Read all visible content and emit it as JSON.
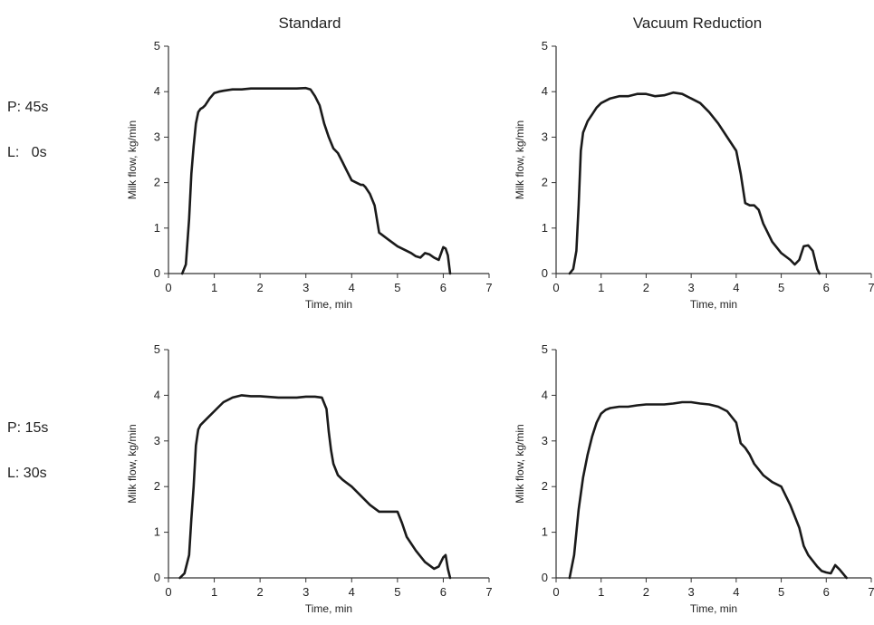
{
  "column_titles": [
    "Standard",
    "Vacuum Reduction"
  ],
  "row_labels": [
    {
      "p": "P: 45s",
      "l": "L:   0s"
    },
    {
      "p": "P: 15s",
      "l": "L: 30s"
    }
  ],
  "colors": {
    "line": "#1a1a1a",
    "axis": "#333333",
    "text": "#222222"
  },
  "chart_data": [
    {
      "type": "line",
      "xlabel": "Time, min",
      "ylabel": "Milk flow, kg/min",
      "xlim": [
        0,
        7
      ],
      "ylim": [
        0,
        5
      ],
      "xticks": [
        0,
        1,
        2,
        3,
        4,
        5,
        6,
        7
      ],
      "yticks": [
        0,
        1,
        2,
        3,
        4,
        5
      ],
      "grid": false,
      "series": [
        {
          "x": [
            0.3,
            0.38,
            0.45,
            0.5,
            0.55,
            0.6,
            0.65,
            0.7,
            0.75,
            0.8,
            0.9,
            1.0,
            1.1,
            1.2,
            1.4,
            1.6,
            1.8,
            2.0,
            2.2,
            2.5,
            2.8,
            3.0,
            3.1,
            3.2,
            3.3,
            3.4,
            3.5,
            3.6,
            3.7,
            3.8,
            3.9,
            4.0,
            4.1,
            4.2,
            4.25,
            4.3,
            4.4,
            4.5,
            4.6,
            4.8,
            5.0,
            5.2,
            5.3,
            5.4,
            5.5,
            5.6,
            5.7,
            5.8,
            5.9,
            6.0,
            6.05,
            6.1,
            6.15
          ],
          "y": [
            0.0,
            0.2,
            1.2,
            2.2,
            2.8,
            3.3,
            3.55,
            3.62,
            3.65,
            3.7,
            3.85,
            3.97,
            4.0,
            4.02,
            4.05,
            4.05,
            4.07,
            4.07,
            4.07,
            4.07,
            4.07,
            4.08,
            4.05,
            3.9,
            3.7,
            3.3,
            3.0,
            2.75,
            2.65,
            2.45,
            2.25,
            2.05,
            2.0,
            1.95,
            1.95,
            1.9,
            1.75,
            1.5,
            0.9,
            0.75,
            0.6,
            0.5,
            0.45,
            0.38,
            0.35,
            0.45,
            0.42,
            0.35,
            0.3,
            0.58,
            0.55,
            0.4,
            0.0
          ]
        }
      ]
    },
    {
      "type": "line",
      "xlabel": "Time, min",
      "ylabel": "Milk flow, kg/min",
      "xlim": [
        0,
        7
      ],
      "ylim": [
        0,
        5
      ],
      "xticks": [
        0,
        1,
        2,
        3,
        4,
        5,
        6,
        7
      ],
      "yticks": [
        0,
        1,
        2,
        3,
        4,
        5
      ],
      "grid": false,
      "series": [
        {
          "x": [
            0.3,
            0.38,
            0.45,
            0.5,
            0.55,
            0.6,
            0.7,
            0.8,
            0.9,
            1.0,
            1.2,
            1.4,
            1.6,
            1.8,
            2.0,
            2.2,
            2.4,
            2.6,
            2.8,
            3.0,
            3.2,
            3.4,
            3.6,
            3.8,
            4.0,
            4.1,
            4.2,
            4.3,
            4.4,
            4.5,
            4.6,
            4.8,
            5.0,
            5.2,
            5.3,
            5.4,
            5.5,
            5.6,
            5.7,
            5.8,
            5.85
          ],
          "y": [
            0.0,
            0.1,
            0.5,
            1.5,
            2.7,
            3.1,
            3.35,
            3.5,
            3.65,
            3.75,
            3.85,
            3.9,
            3.9,
            3.95,
            3.95,
            3.9,
            3.92,
            3.98,
            3.95,
            3.85,
            3.75,
            3.55,
            3.3,
            3.0,
            2.7,
            2.2,
            1.55,
            1.5,
            1.5,
            1.4,
            1.1,
            0.7,
            0.45,
            0.3,
            0.2,
            0.3,
            0.6,
            0.62,
            0.5,
            0.1,
            0.0
          ]
        }
      ]
    },
    {
      "type": "line",
      "xlabel": "Time, min",
      "ylabel": "Milk flow, kg/min",
      "xlim": [
        0,
        7
      ],
      "ylim": [
        0,
        5
      ],
      "xticks": [
        0,
        1,
        2,
        3,
        4,
        5,
        6,
        7
      ],
      "yticks": [
        0,
        1,
        2,
        3,
        4,
        5
      ],
      "grid": false,
      "series": [
        {
          "x": [
            0.25,
            0.35,
            0.45,
            0.5,
            0.55,
            0.6,
            0.65,
            0.7,
            0.8,
            0.9,
            1.0,
            1.1,
            1.2,
            1.4,
            1.6,
            1.8,
            2.0,
            2.4,
            2.8,
            3.0,
            3.2,
            3.35,
            3.45,
            3.5,
            3.55,
            3.6,
            3.7,
            3.8,
            4.0,
            4.2,
            4.4,
            4.6,
            4.8,
            5.0,
            5.1,
            5.2,
            5.4,
            5.6,
            5.8,
            5.9,
            6.0,
            6.05,
            6.1,
            6.15
          ],
          "y": [
            0.0,
            0.1,
            0.5,
            1.3,
            2.0,
            2.9,
            3.25,
            3.35,
            3.45,
            3.55,
            3.65,
            3.75,
            3.85,
            3.95,
            4.0,
            3.98,
            3.98,
            3.95,
            3.95,
            3.97,
            3.97,
            3.95,
            3.7,
            3.2,
            2.8,
            2.5,
            2.25,
            2.15,
            2.0,
            1.8,
            1.6,
            1.45,
            1.45,
            1.45,
            1.2,
            0.9,
            0.6,
            0.35,
            0.2,
            0.25,
            0.45,
            0.5,
            0.2,
            0.0
          ]
        }
      ]
    },
    {
      "type": "line",
      "xlabel": "Time, min",
      "ylabel": "Milk flow, kg/min",
      "xlim": [
        0,
        7
      ],
      "ylim": [
        0,
        5
      ],
      "xticks": [
        0,
        1,
        2,
        3,
        4,
        5,
        6,
        7
      ],
      "yticks": [
        0,
        1,
        2,
        3,
        4,
        5
      ],
      "grid": false,
      "series": [
        {
          "x": [
            0.3,
            0.4,
            0.5,
            0.6,
            0.7,
            0.8,
            0.9,
            1.0,
            1.1,
            1.2,
            1.4,
            1.6,
            1.8,
            2.0,
            2.2,
            2.4,
            2.6,
            2.8,
            3.0,
            3.2,
            3.4,
            3.6,
            3.8,
            4.0,
            4.1,
            4.2,
            4.3,
            4.4,
            4.6,
            4.8,
            5.0,
            5.2,
            5.4,
            5.5,
            5.6,
            5.8,
            5.9,
            6.0,
            6.1,
            6.2,
            6.3,
            6.45
          ],
          "y": [
            0.0,
            0.5,
            1.5,
            2.2,
            2.7,
            3.1,
            3.4,
            3.6,
            3.68,
            3.72,
            3.75,
            3.75,
            3.78,
            3.8,
            3.8,
            3.8,
            3.82,
            3.85,
            3.85,
            3.82,
            3.8,
            3.75,
            3.65,
            3.4,
            2.95,
            2.85,
            2.7,
            2.5,
            2.25,
            2.1,
            2.0,
            1.6,
            1.1,
            0.7,
            0.5,
            0.25,
            0.15,
            0.12,
            0.1,
            0.28,
            0.18,
            0.0
          ]
        }
      ]
    }
  ]
}
